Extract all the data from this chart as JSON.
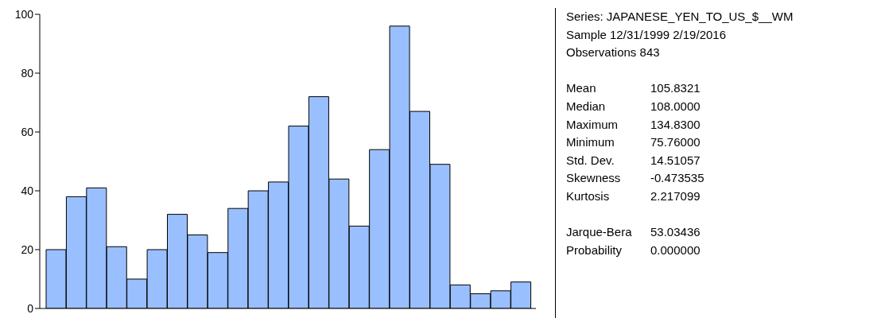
{
  "chart_data": [
    {
      "type": "bar",
      "categories": [
        null,
        null,
        null,
        null,
        null,
        null,
        null,
        null,
        null,
        null,
        null,
        null,
        null,
        null,
        null,
        null,
        null,
        null,
        null,
        null,
        null,
        null,
        null,
        null
      ],
      "values": [
        20,
        38,
        41,
        21,
        10,
        20,
        32,
        25,
        19,
        34,
        40,
        43,
        62,
        72,
        44,
        28,
        54,
        96,
        67,
        49,
        8,
        5,
        6,
        9
      ],
      "color": "#99bfff",
      "ylim": [
        0,
        100
      ],
      "yticks": [
        0,
        20,
        40,
        60,
        80,
        100
      ],
      "tick_labels": "y"
    },
    {
      "type": "other",
      "title": "Series: JAPANESE_YEN_TO_US_$__WM",
      "annotations": [
        "Sample 12/31/1999 2/19/2016",
        "Observations 843",
        "Mean\t105.8321",
        "Median\t108.0000",
        "Maximum\t134.8300",
        "Minimum\t75.76000",
        "Std. Dev.\t14.51057",
        "Skewness\t-0.473535",
        "Kurtosis\t2.217099",
        "Jarque-Bera\t53.03436",
        "Probability\t0.000000"
      ]
    }
  ]
}
